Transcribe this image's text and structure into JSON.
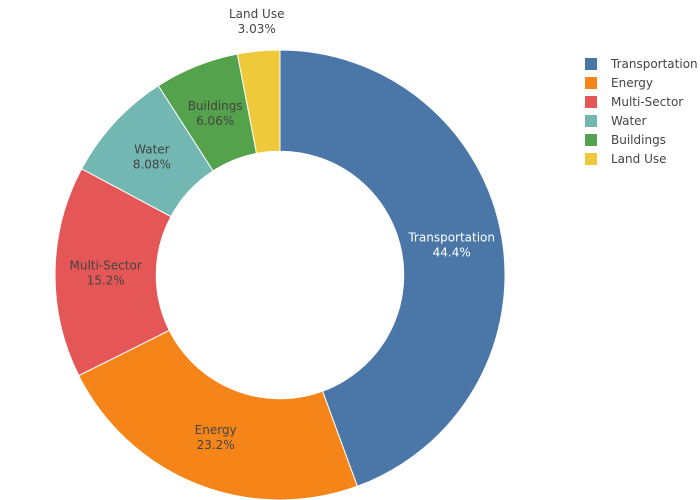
{
  "chart_data": {
    "type": "pie",
    "hole": 0.55,
    "sort": "descending",
    "direction": "clockwise",
    "labels": [
      "Transportation",
      "Energy",
      "Multi-Sector",
      "Water",
      "Buildings",
      "Land Use"
    ],
    "values": [
      44.4,
      23.2,
      15.2,
      8.08,
      6.06,
      3.03
    ],
    "display_percents": [
      "44.4%",
      "23.2%",
      "15.2%",
      "8.08%",
      "6.06%",
      "3.03%"
    ],
    "colors": [
      "#4a76a8",
      "#f58518",
      "#e45756",
      "#72b7b2",
      "#54a24b",
      "#eeca3b"
    ],
    "text_colors": [
      "#ffffff",
      "#444444",
      "#444444",
      "#444444",
      "#444444",
      "#444444"
    ],
    "legend": {
      "position": "top-right",
      "entries": [
        "Transportation",
        "Energy",
        "Multi-Sector",
        "Water",
        "Buildings",
        "Land Use"
      ]
    }
  }
}
